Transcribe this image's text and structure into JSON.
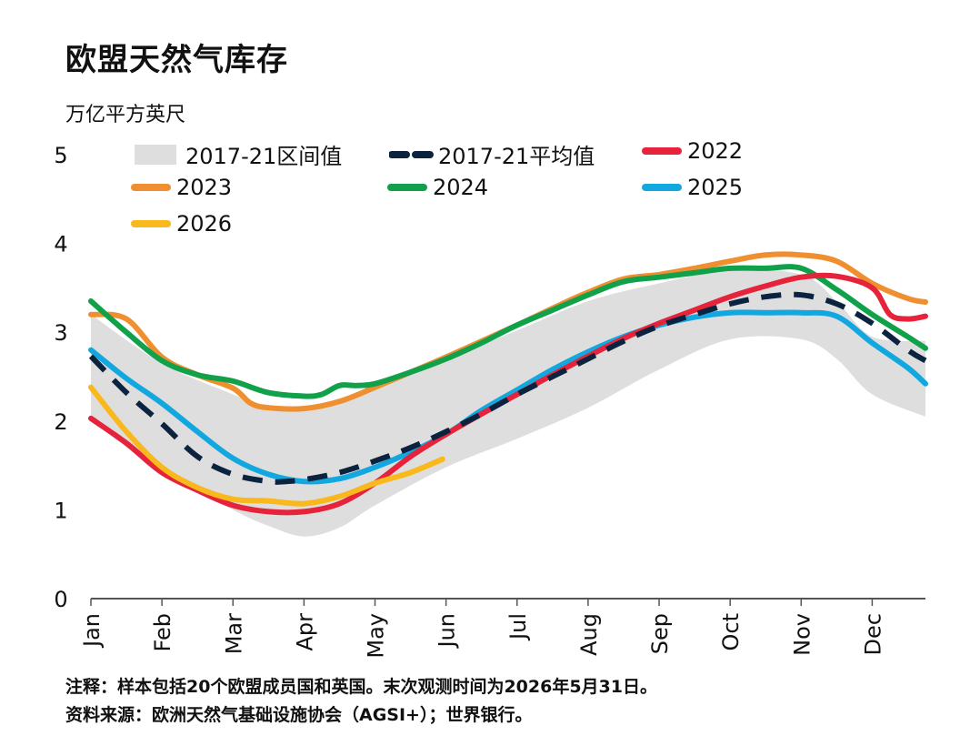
{
  "title": "欧盟天然气库存",
  "unit_label": "万亿平方英尺",
  "notes": {
    "note": "注释：样本包括20个欧盟成员国和英国。末次观测时间为2026年5月31日。",
    "source": "资料来源：欧洲天然气基础设施协会（AGSI+）；世界银行。"
  },
  "legend": [
    {
      "label": "2017-21区间值",
      "color": "#dedede",
      "style": "band"
    },
    {
      "label": "2017-21平均值",
      "color": "#0c2340",
      "style": "dashed"
    },
    {
      "label": "2022",
      "color": "#e5233b",
      "style": "solid"
    },
    {
      "label": "2023",
      "color": "#ef8f2f",
      "style": "solid"
    },
    {
      "label": "2024",
      "color": "#10a14a",
      "style": "solid"
    },
    {
      "label": "2025",
      "color": "#12a8df",
      "style": "solid"
    },
    {
      "label": "2026",
      "color": "#f9b81c",
      "style": "solid"
    }
  ],
  "chart_data": {
    "type": "line",
    "x_axis": {
      "label": "",
      "categories": [
        "Jan",
        "Feb",
        "Mar",
        "Apr",
        "May",
        "Jun",
        "Jul",
        "Aug",
        "Sep",
        "Oct",
        "Nov",
        "Dec"
      ],
      "range_months": [
        0,
        11.75
      ]
    },
    "y_axis": {
      "label": "万亿平方英尺",
      "range": [
        0,
        5
      ],
      "ticks": [
        0,
        1,
        2,
        3,
        4,
        5
      ]
    },
    "grid": false,
    "legend_position": "top",
    "band": {
      "name": "2017-21区间值",
      "x": [
        0,
        1,
        2,
        2.5,
        3,
        3.5,
        4,
        5,
        6,
        7,
        8,
        9,
        10,
        10.5,
        11,
        11.75
      ],
      "upper": [
        3.2,
        2.65,
        2.3,
        2.15,
        2.15,
        2.2,
        2.38,
        2.7,
        3.02,
        3.35,
        3.55,
        3.7,
        3.65,
        3.35,
        2.95,
        2.9
      ],
      "lower": [
        2.0,
        1.45,
        1.0,
        0.82,
        0.7,
        0.8,
        1.05,
        1.48,
        1.8,
        2.15,
        2.58,
        2.92,
        2.92,
        2.7,
        2.3,
        2.05
      ]
    },
    "series": [
      {
        "name": "2017-21平均值",
        "color": "#0c2340",
        "dashed": true,
        "x": [
          0,
          0.5,
          1,
          1.5,
          2,
          2.5,
          2.75,
          3,
          3.5,
          4,
          4.5,
          5,
          5.5,
          6,
          6.5,
          7,
          7.5,
          8,
          8.5,
          9,
          9.5,
          10,
          10.5,
          11,
          11.5,
          11.75
        ],
        "y": [
          2.73,
          2.32,
          1.97,
          1.6,
          1.4,
          1.32,
          1.32,
          1.34,
          1.42,
          1.55,
          1.7,
          1.88,
          2.08,
          2.3,
          2.5,
          2.7,
          2.9,
          3.07,
          3.2,
          3.32,
          3.4,
          3.42,
          3.32,
          3.1,
          2.8,
          2.68
        ]
      },
      {
        "name": "2022",
        "color": "#e5233b",
        "x": [
          0,
          0.5,
          1,
          1.5,
          2,
          2.5,
          3,
          3.5,
          4,
          4.5,
          5,
          5.5,
          6,
          6.5,
          7,
          7.5,
          8,
          8.5,
          9,
          9.5,
          10,
          10.5,
          11,
          11.25,
          11.5,
          11.75
        ],
        "y": [
          2.03,
          1.75,
          1.42,
          1.22,
          1.05,
          0.98,
          0.98,
          1.07,
          1.3,
          1.6,
          1.85,
          2.08,
          2.3,
          2.52,
          2.73,
          2.93,
          3.1,
          3.25,
          3.4,
          3.52,
          3.62,
          3.63,
          3.5,
          3.2,
          3.15,
          3.18
        ]
      },
      {
        "name": "2023",
        "color": "#ef8f2f",
        "x": [
          0,
          0.5,
          1,
          1.5,
          2,
          2.25,
          2.5,
          3,
          3.5,
          4,
          4.5,
          5,
          5.5,
          6,
          6.5,
          7,
          7.5,
          8,
          8.5,
          9,
          9.5,
          10,
          10.5,
          11,
          11.5,
          11.75
        ],
        "y": [
          3.2,
          3.15,
          2.72,
          2.52,
          2.37,
          2.2,
          2.15,
          2.14,
          2.22,
          2.38,
          2.55,
          2.72,
          2.9,
          3.08,
          3.27,
          3.45,
          3.6,
          3.65,
          3.72,
          3.8,
          3.87,
          3.87,
          3.8,
          3.55,
          3.38,
          3.34
        ]
      },
      {
        "name": "2024",
        "color": "#10a14a",
        "x": [
          0,
          0.5,
          1,
          1.5,
          2,
          2.5,
          3,
          3.25,
          3.5,
          3.75,
          4,
          4.5,
          5,
          5.5,
          6,
          6.5,
          7,
          7.5,
          8,
          8.5,
          9,
          9.5,
          10,
          10.5,
          11,
          11.5,
          11.75
        ],
        "y": [
          3.35,
          3.0,
          2.68,
          2.52,
          2.45,
          2.32,
          2.28,
          2.3,
          2.4,
          2.4,
          2.42,
          2.55,
          2.7,
          2.88,
          3.08,
          3.25,
          3.42,
          3.57,
          3.62,
          3.67,
          3.72,
          3.72,
          3.72,
          3.48,
          3.2,
          2.95,
          2.82
        ]
      },
      {
        "name": "2025",
        "color": "#12a8df",
        "x": [
          0,
          0.5,
          1,
          1.5,
          2,
          2.5,
          3,
          3.5,
          4,
          4.5,
          5,
          5.5,
          6,
          6.5,
          7,
          7.5,
          8,
          8.5,
          9,
          9.5,
          10,
          10.5,
          11,
          11.5,
          11.75
        ],
        "y": [
          2.8,
          2.48,
          2.2,
          1.88,
          1.58,
          1.4,
          1.32,
          1.35,
          1.48,
          1.65,
          1.85,
          2.12,
          2.35,
          2.58,
          2.78,
          2.95,
          3.08,
          3.17,
          3.22,
          3.22,
          3.22,
          3.18,
          2.88,
          2.6,
          2.42
        ]
      },
      {
        "name": "2026",
        "color": "#f9b81c",
        "x": [
          0,
          0.5,
          1,
          1.5,
          2,
          2.5,
          3,
          3.5,
          4,
          4.5,
          4.95
        ],
        "y": [
          2.38,
          1.88,
          1.48,
          1.25,
          1.12,
          1.1,
          1.07,
          1.15,
          1.3,
          1.42,
          1.57
        ]
      }
    ]
  }
}
